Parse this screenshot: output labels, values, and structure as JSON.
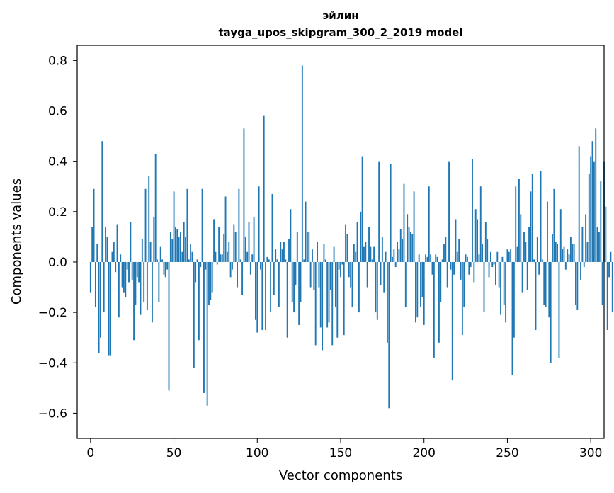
{
  "chart_data": {
    "type": "bar",
    "title": "эйлин",
    "subtitle": "tayga_upos_skipgram_300_2_2019 model",
    "xlabel": "Vector components",
    "ylabel": "Components values",
    "xlim": [
      -8,
      308
    ],
    "ylim": [
      -0.7,
      0.86
    ],
    "xticks": [
      0,
      50,
      100,
      150,
      200,
      250,
      300
    ],
    "xtick_labels": [
      "0",
      "50",
      "100",
      "150",
      "200",
      "250",
      "300"
    ],
    "yticks": [
      -0.6,
      -0.4,
      -0.2,
      0.0,
      0.2,
      0.4,
      0.6,
      0.8
    ],
    "ytick_labels": [
      "−0.6",
      "−0.4",
      "−0.2",
      "0.0",
      "0.2",
      "0.4",
      "0.6",
      "0.8"
    ],
    "grid": false,
    "bar_color": "#1f77b4",
    "values": [
      -0.12,
      0.14,
      0.29,
      -0.18,
      0.07,
      -0.36,
      -0.3,
      0.48,
      -0.2,
      0.14,
      0.1,
      -0.37,
      -0.37,
      0.04,
      0.08,
      -0.04,
      0.15,
      -0.22,
      0.03,
      -0.1,
      -0.12,
      -0.14,
      -0.03,
      -0.08,
      0.16,
      -0.07,
      -0.31,
      -0.17,
      -0.06,
      -0.08,
      -0.21,
      0.09,
      -0.16,
      0.29,
      -0.19,
      0.34,
      0.08,
      -0.24,
      0.18,
      0.43,
      0.01,
      -0.16,
      0.06,
      0.01,
      -0.05,
      -0.06,
      -0.03,
      -0.51,
      0.12,
      0.09,
      0.28,
      0.14,
      0.13,
      0.1,
      0.12,
      0.04,
      0.16,
      0.1,
      0.29,
      0.01,
      0.07,
      0.04,
      -0.42,
      -0.08,
      0.01,
      -0.31,
      -0.02,
      0.29,
      -0.52,
      -0.03,
      -0.57,
      -0.17,
      -0.15,
      -0.12,
      0.17,
      0.04,
      -0.01,
      0.14,
      0.03,
      0.03,
      0.11,
      0.26,
      0.04,
      0.08,
      -0.06,
      -0.03,
      0.15,
      0.12,
      -0.1,
      0.29,
      0.01,
      -0.13,
      0.53,
      0.1,
      0.04,
      0.16,
      -0.05,
      0.03,
      0.18,
      -0.23,
      -0.28,
      0.3,
      -0.03,
      -0.27,
      0.58,
      -0.27,
      0.02,
      0.01,
      -0.2,
      0.27,
      -0.13,
      0.05,
      0.01,
      -0.18,
      0.08,
      0.05,
      0.08,
      0.01,
      -0.3,
      0.09,
      0.21,
      -0.16,
      -0.2,
      -0.09,
      0.12,
      -0.25,
      -0.16,
      0.78,
      0.01,
      0.24,
      0.12,
      0.12,
      -0.1,
      0.05,
      -0.11,
      -0.33,
      0.08,
      -0.1,
      -0.26,
      -0.35,
      0.07,
      0.01,
      -0.26,
      -0.24,
      -0.11,
      -0.33,
      0.06,
      -0.18,
      -0.3,
      -0.03,
      -0.06,
      -0.01,
      -0.29,
      0.15,
      0.11,
      -0.06,
      -0.1,
      -0.18,
      0.07,
      0.04,
      0.16,
      -0.2,
      0.2,
      0.42,
      0.06,
      0.08,
      -0.1,
      0.14,
      0.06,
      0.01,
      0.06,
      -0.2,
      -0.23,
      0.4,
      -0.09,
      0.1,
      -0.12,
      0.04,
      -0.32,
      -0.58,
      0.39,
      0.02,
      0.05,
      -0.02,
      0.08,
      0.05,
      0.13,
      0.09,
      0.31,
      -0.18,
      0.19,
      0.14,
      0.12,
      0.11,
      0.28,
      -0.24,
      -0.22,
      0.03,
      -0.18,
      -0.14,
      -0.25,
      0.03,
      0.02,
      0.3,
      0.03,
      -0.05,
      -0.38,
      0.03,
      0.02,
      -0.32,
      -0.16,
      0.01,
      0.07,
      0.1,
      -0.1,
      0.4,
      -0.03,
      -0.47,
      -0.05,
      0.17,
      0.04,
      0.09,
      -0.07,
      -0.29,
      -0.18,
      0.03,
      0.02,
      -0.05,
      -0.02,
      0.41,
      -0.08,
      0.21,
      0.17,
      0.03,
      0.3,
      0.07,
      -0.2,
      0.16,
      0.09,
      -0.06,
      0.04,
      -0.02,
      -0.01,
      -0.09,
      0.04,
      -0.1,
      -0.21,
      0.02,
      -0.17,
      -0.24,
      0.05,
      0.04,
      0.05,
      -0.45,
      -0.3,
      0.3,
      0.06,
      0.33,
      0.19,
      -0.12,
      0.12,
      0.08,
      -0.11,
      0.14,
      0.28,
      0.35,
      0.01,
      -0.27,
      0.1,
      -0.05,
      0.36,
      0.01,
      -0.17,
      -0.18,
      0.24,
      -0.22,
      -0.4,
      0.11,
      0.29,
      0.08,
      0.07,
      -0.38,
      0.21,
      0.05,
      0.06,
      -0.03,
      0.05,
      0.03,
      0.1,
      0.07,
      0.07,
      -0.17,
      -0.19,
      0.46,
      -0.07,
      0.14,
      -0.02,
      0.19,
      0.08,
      0.35,
      0.42,
      0.48,
      0.4,
      0.53,
      0.14,
      0.12,
      0.32,
      -0.17,
      0.4,
      0.22,
      -0.27,
      -0.06,
      0.04,
      -0.2
    ]
  }
}
